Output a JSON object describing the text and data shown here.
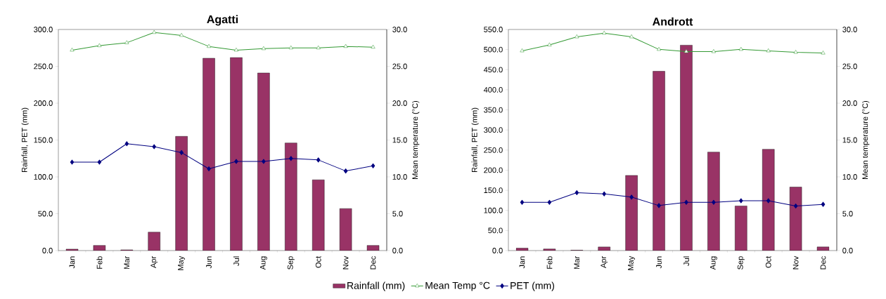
{
  "chart_data": [
    {
      "type": "bar",
      "title": "Agatti",
      "ylabel": "Rainfall, PET (mm)",
      "y2label": "Mean temperature (°C)",
      "categories": [
        "Jan",
        "Feb",
        "Mar",
        "Apr",
        "May",
        "Jun",
        "Jul",
        "Aug",
        "Sep",
        "Oct",
        "Nov",
        "Dec"
      ],
      "series": [
        {
          "name": "Rainfall (mm)",
          "color": "#993366",
          "values": [
            2,
            7,
            1,
            25,
            155,
            261,
            262,
            241,
            146,
            96,
            57,
            7
          ]
        },
        {
          "name": "Mean Temp °C",
          "type": "line",
          "axis": "y2",
          "marker": "triangle",
          "color": "#339933",
          "values": [
            27.2,
            27.8,
            28.2,
            29.6,
            29.2,
            27.7,
            27.2,
            27.4,
            27.5,
            27.5,
            27.7,
            27.6
          ]
        },
        {
          "name": "PET (mm)",
          "type": "line",
          "marker": "diamond",
          "color": "#000080",
          "values": [
            120,
            120,
            145,
            141,
            133,
            111,
            121,
            121,
            125,
            123,
            108,
            115
          ]
        }
      ],
      "ylim": [
        0,
        300
      ],
      "yticks": [
        {
          "value": 0,
          "label": "0.0"
        },
        {
          "value": 50,
          "label": "50.0"
        },
        {
          "value": 100,
          "label": "100.0"
        },
        {
          "value": 150,
          "label": "150.0"
        },
        {
          "value": 200,
          "label": "200.0"
        },
        {
          "value": 250,
          "label": "250.0"
        },
        {
          "value": 300,
          "label": "300.0"
        }
      ],
      "y2lim": [
        0,
        30
      ],
      "y2ticks": [
        {
          "value": 0,
          "label": "0.0"
        },
        {
          "value": 5,
          "label": "5.0"
        },
        {
          "value": 10,
          "label": "10.0"
        },
        {
          "value": 15,
          "label": "15.0"
        },
        {
          "value": 20,
          "label": "20.0"
        },
        {
          "value": 25,
          "label": "25.0"
        },
        {
          "value": 30,
          "label": "30.0"
        }
      ],
      "legend": "bottom"
    },
    {
      "type": "bar",
      "title": "Andrott",
      "ylabel": "Rainfall, PET (mm)",
      "y2label": "Mean temperature (°C)",
      "categories": [
        "Jan",
        "Feb",
        "Mar",
        "Apr",
        "May",
        "Jun",
        "Jul",
        "Aug",
        "Sep",
        "Oct",
        "Nov",
        "Dec"
      ],
      "series": [
        {
          "color": "#993366",
          "values": [
            6,
            4,
            1,
            9,
            187,
            446,
            511,
            245,
            111,
            252,
            158,
            9
          ]
        },
        {
          "type": "line",
          "axis": "y2",
          "marker": "triangle",
          "color": "#339933",
          "values": [
            27.1,
            27.9,
            29.0,
            29.5,
            29.0,
            27.3,
            27.0,
            27.0,
            27.3,
            27.1,
            26.9,
            26.8
          ]
        },
        {
          "type": "line",
          "marker": "diamond",
          "color": "#000080",
          "values": [
            120,
            120,
            144,
            141,
            133,
            112,
            120,
            120,
            124,
            124,
            111,
            115
          ]
        }
      ],
      "ylim": [
        0,
        550
      ],
      "yticks": [
        {
          "value": 0,
          "label": "0.0"
        },
        {
          "value": 50,
          "label": "50.0"
        },
        {
          "value": 100,
          "label": "100.0"
        },
        {
          "value": 150,
          "label": "150.0"
        },
        {
          "value": 200,
          "label": "200.0"
        },
        {
          "value": 250,
          "label": "250.0"
        },
        {
          "value": 300,
          "label": "300.0"
        },
        {
          "value": 350,
          "label": "350.0"
        },
        {
          "value": 400,
          "label": "400.0"
        },
        {
          "value": 450,
          "label": "450.0"
        },
        {
          "value": 500,
          "label": "500.0"
        },
        {
          "value": 550,
          "label": "550.0"
        }
      ],
      "y2lim": [
        0,
        30
      ],
      "y2ticks": [
        {
          "value": 0,
          "label": "0.0"
        },
        {
          "value": 5,
          "label": "5.0"
        },
        {
          "value": 10,
          "label": "10.0"
        },
        {
          "value": 15,
          "label": "15.0"
        },
        {
          "value": 20,
          "label": "20.0"
        },
        {
          "value": 25,
          "label": "25.0"
        },
        {
          "value": 30,
          "label": "30.0"
        }
      ]
    }
  ]
}
